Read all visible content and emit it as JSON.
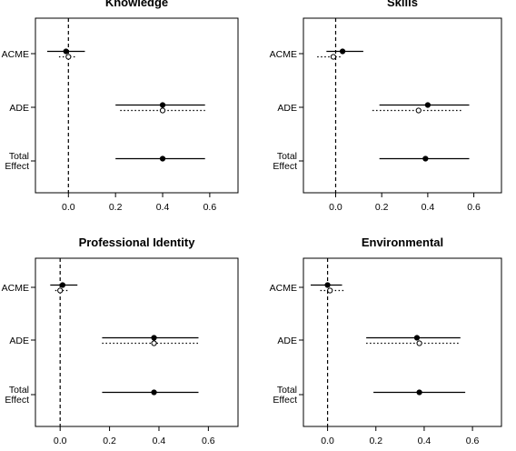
{
  "chart_data": [
    {
      "type": "forest",
      "title": "Knowledge",
      "categories": [
        "ACME",
        "ADE",
        "Total Effect"
      ],
      "xlim": [
        -0.14,
        0.72
      ],
      "xticks": [
        0.0,
        0.2,
        0.4,
        0.6
      ],
      "reference_line": 0.0,
      "series": [
        {
          "style": "solid-filled",
          "estimates": [
            -0.01,
            0.4,
            0.4
          ],
          "lower": [
            -0.09,
            0.2,
            0.2
          ],
          "upper": [
            0.07,
            0.58,
            0.58
          ]
        },
        {
          "style": "dotted-open",
          "estimates": [
            0.0,
            0.4,
            null
          ],
          "lower": [
            -0.04,
            0.22,
            null
          ],
          "upper": [
            0.03,
            0.58,
            null
          ]
        }
      ]
    },
    {
      "type": "forest",
      "title": "Skills",
      "categories": [
        "ACME",
        "ADE",
        "Total Effect"
      ],
      "xlim": [
        -0.14,
        0.72
      ],
      "xticks": [
        0.0,
        0.2,
        0.4,
        0.6
      ],
      "reference_line": 0.0,
      "series": [
        {
          "style": "solid-filled",
          "estimates": [
            0.03,
            0.4,
            0.39
          ],
          "lower": [
            -0.04,
            0.19,
            0.19
          ],
          "upper": [
            0.12,
            0.58,
            0.58
          ]
        },
        {
          "style": "dotted-open",
          "estimates": [
            -0.01,
            0.36,
            null
          ],
          "lower": [
            -0.08,
            0.16,
            null
          ],
          "upper": [
            0.03,
            0.55,
            null
          ]
        }
      ]
    },
    {
      "type": "forest",
      "title": "Professional Identity",
      "categories": [
        "ACME",
        "ADE",
        "Total Effect"
      ],
      "xlim": [
        -0.1,
        0.72
      ],
      "xticks": [
        0.0,
        0.2,
        0.4,
        0.6
      ],
      "reference_line": 0.0,
      "series": [
        {
          "style": "solid-filled",
          "estimates": [
            0.01,
            0.38,
            0.38
          ],
          "lower": [
            -0.04,
            0.17,
            0.17
          ],
          "upper": [
            0.07,
            0.56,
            0.56
          ]
        },
        {
          "style": "dotted-open",
          "estimates": [
            0.0,
            0.38,
            null
          ],
          "lower": [
            -0.02,
            0.17,
            null
          ],
          "upper": [
            0.03,
            0.56,
            null
          ]
        }
      ]
    },
    {
      "type": "forest",
      "title": "Environmental",
      "categories": [
        "ACME",
        "ADE",
        "Total Effect"
      ],
      "xlim": [
        -0.1,
        0.72
      ],
      "xticks": [
        0.0,
        0.2,
        0.4,
        0.6
      ],
      "reference_line": 0.0,
      "series": [
        {
          "style": "solid-filled",
          "estimates": [
            0.0,
            0.37,
            0.38
          ],
          "lower": [
            -0.07,
            0.16,
            0.19
          ],
          "upper": [
            0.06,
            0.55,
            0.57
          ]
        },
        {
          "style": "dotted-open",
          "estimates": [
            0.01,
            0.38,
            null
          ],
          "lower": [
            -0.03,
            0.16,
            null
          ],
          "upper": [
            0.07,
            0.55,
            null
          ]
        }
      ]
    }
  ]
}
